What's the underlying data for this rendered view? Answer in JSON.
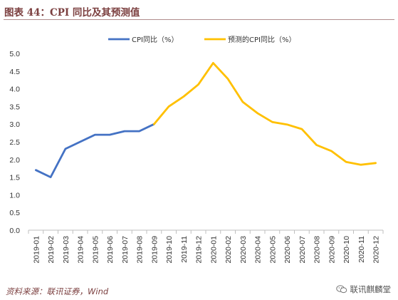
{
  "title": "图表 44：CPI 同比及其预测值",
  "source": "资料来源：联讯证券，Wind",
  "watermark": {
    "text": "联讯麒麟堂",
    "icon": "wechat-icon"
  },
  "colors": {
    "actual": "#4472c4",
    "forecast": "#ffc000",
    "title": "#7b3f3f"
  },
  "chart_data": {
    "type": "line",
    "title": "图表 44：CPI 同比及其预测值",
    "xlabel": "",
    "ylabel": "",
    "ylim": [
      0.0,
      5.0
    ],
    "yticks": [
      "0.0",
      "0.5",
      "1.0",
      "1.5",
      "2.0",
      "2.5",
      "3.0",
      "3.5",
      "4.0",
      "4.5",
      "5.0"
    ],
    "grid": false,
    "legend_position": "top-center",
    "categories": [
      "2019-01",
      "2019-02",
      "2019-03",
      "2019-04",
      "2019-05",
      "2019-06",
      "2019-07",
      "2019-08",
      "2019-09",
      "2019-10",
      "2019-11",
      "2019-12",
      "2020-01",
      "2020-02",
      "2020-03",
      "2020-04",
      "2020-05",
      "2020-06",
      "2020-07",
      "2020-08",
      "2020-09",
      "2020-10",
      "2020-11",
      "2020-12"
    ],
    "series": [
      {
        "name": "CPI同比（%）",
        "color": "#4472c4",
        "values": [
          1.7,
          1.5,
          2.3,
          2.5,
          2.7,
          2.7,
          2.8,
          2.8,
          3.0,
          null,
          null,
          null,
          null,
          null,
          null,
          null,
          null,
          null,
          null,
          null,
          null,
          null,
          null,
          null
        ]
      },
      {
        "name": "预测的CPI同比（%）",
        "color": "#ffc000",
        "values": [
          null,
          null,
          null,
          null,
          null,
          null,
          null,
          null,
          3.0,
          3.5,
          3.78,
          4.12,
          4.73,
          4.28,
          3.63,
          3.31,
          3.06,
          2.99,
          2.86,
          2.41,
          2.24,
          1.93,
          1.85,
          1.9
        ]
      }
    ]
  }
}
